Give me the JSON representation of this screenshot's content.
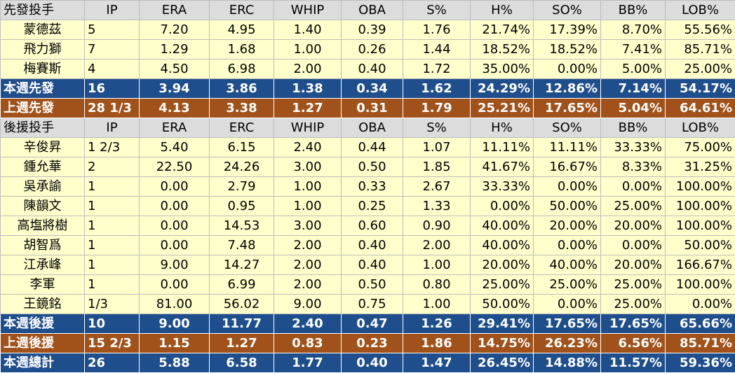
{
  "columns": [
    "IP",
    "ERA",
    "ERC",
    "WHIP",
    "OBA",
    "S%",
    "H%",
    "SO%",
    "BB%",
    "LOB%"
  ],
  "sections": [
    {
      "header": "先發投手",
      "rows": [
        {
          "name": "蒙德茲",
          "ip": "5",
          "era": "7.20",
          "erc": "4.95",
          "whip": "1.40",
          "oba": "0.39",
          "s": "1.76",
          "h": "21.74%",
          "so": "17.39%",
          "bb": "8.70%",
          "lob": "55.56%"
        },
        {
          "name": "飛力獅",
          "ip": "7",
          "era": "1.29",
          "erc": "1.68",
          "whip": "1.00",
          "oba": "0.26",
          "s": "1.44",
          "h": "18.52%",
          "so": "18.52%",
          "bb": "7.41%",
          "lob": "85.71%"
        },
        {
          "name": "梅賽斯",
          "ip": "4",
          "era": "4.50",
          "erc": "6.98",
          "whip": "2.00",
          "oba": "0.40",
          "s": "1.72",
          "h": "35.00%",
          "so": "0.00%",
          "bb": "5.00%",
          "lob": "25.00%"
        }
      ],
      "summaries": [
        {
          "style": "blue",
          "name": "本週先發",
          "ip": "16",
          "era": "3.94",
          "erc": "3.86",
          "whip": "1.38",
          "oba": "0.34",
          "s": "1.62",
          "h": "24.29%",
          "so": "12.86%",
          "bb": "7.14%",
          "lob": "54.17%"
        },
        {
          "style": "brown",
          "name": "上週先發",
          "ip": "28 1/3",
          "era": "4.13",
          "erc": "3.38",
          "whip": "1.27",
          "oba": "0.31",
          "s": "1.79",
          "h": "25.21%",
          "so": "17.65%",
          "bb": "5.04%",
          "lob": "64.61%"
        }
      ]
    },
    {
      "header": "後援投手",
      "rows": [
        {
          "name": "辛俊昇",
          "ip": "1 2/3",
          "era": "5.40",
          "erc": "6.15",
          "whip": "2.40",
          "oba": "0.44",
          "s": "1.07",
          "h": "11.11%",
          "so": "11.11%",
          "bb": "33.33%",
          "lob": "75.00%"
        },
        {
          "name": "鍾允華",
          "ip": "2",
          "era": "22.50",
          "erc": "24.26",
          "whip": "3.00",
          "oba": "0.50",
          "s": "1.85",
          "h": "41.67%",
          "so": "16.67%",
          "bb": "8.33%",
          "lob": "31.25%"
        },
        {
          "name": "吳承諭",
          "ip": "1",
          "era": "0.00",
          "erc": "2.79",
          "whip": "1.00",
          "oba": "0.33",
          "s": "2.67",
          "h": "33.33%",
          "so": "0.00%",
          "bb": "0.00%",
          "lob": "100.00%"
        },
        {
          "name": "陳韻文",
          "ip": "1",
          "era": "0.00",
          "erc": "0.95",
          "whip": "1.00",
          "oba": "0.25",
          "s": "1.33",
          "h": "0.00%",
          "so": "50.00%",
          "bb": "25.00%",
          "lob": "100.00%"
        },
        {
          "name": "高塩將樹",
          "ip": "1",
          "era": "0.00",
          "erc": "14.53",
          "whip": "3.00",
          "oba": "0.60",
          "s": "0.90",
          "h": "40.00%",
          "so": "20.00%",
          "bb": "20.00%",
          "lob": "100.00%"
        },
        {
          "name": "胡智爲",
          "ip": "1",
          "era": "0.00",
          "erc": "7.48",
          "whip": "2.00",
          "oba": "0.40",
          "s": "2.00",
          "h": "40.00%",
          "so": "0.00%",
          "bb": "0.00%",
          "lob": "50.00%"
        },
        {
          "name": "江承峰",
          "ip": "1",
          "era": "9.00",
          "erc": "14.27",
          "whip": "2.00",
          "oba": "0.40",
          "s": "1.00",
          "h": "20.00%",
          "so": "40.00%",
          "bb": "20.00%",
          "lob": "166.67%"
        },
        {
          "name": "李軍",
          "ip": "1",
          "era": "0.00",
          "erc": "6.99",
          "whip": "2.00",
          "oba": "0.50",
          "s": "0.80",
          "h": "25.00%",
          "so": "25.00%",
          "bb": "25.00%",
          "lob": "100.00%"
        },
        {
          "name": "王鏡銘",
          "ip": "1/3",
          "era": "81.00",
          "erc": "56.02",
          "whip": "9.00",
          "oba": "0.75",
          "s": "1.00",
          "h": "50.00%",
          "so": "0.00%",
          "bb": "25.00%",
          "lob": "0.00%"
        }
      ],
      "summaries": [
        {
          "style": "blue",
          "name": "本週後援",
          "ip": "10",
          "era": "9.00",
          "erc": "11.77",
          "whip": "2.40",
          "oba": "0.47",
          "s": "1.26",
          "h": "29.41%",
          "so": "17.65%",
          "bb": "17.65%",
          "lob": "65.66%"
        },
        {
          "style": "brown",
          "name": "上週後援",
          "ip": "15 2/3",
          "era": "1.15",
          "erc": "1.27",
          "whip": "0.83",
          "oba": "0.23",
          "s": "1.86",
          "h": "14.75%",
          "so": "26.23%",
          "bb": "6.56%",
          "lob": "85.71%"
        },
        {
          "style": "blue",
          "name": "本週總計",
          "ip": "26",
          "era": "5.88",
          "erc": "6.58",
          "whip": "1.77",
          "oba": "0.40",
          "s": "1.47",
          "h": "26.45%",
          "so": "14.88%",
          "bb": "11.57%",
          "lob": "59.36%"
        }
      ]
    }
  ]
}
